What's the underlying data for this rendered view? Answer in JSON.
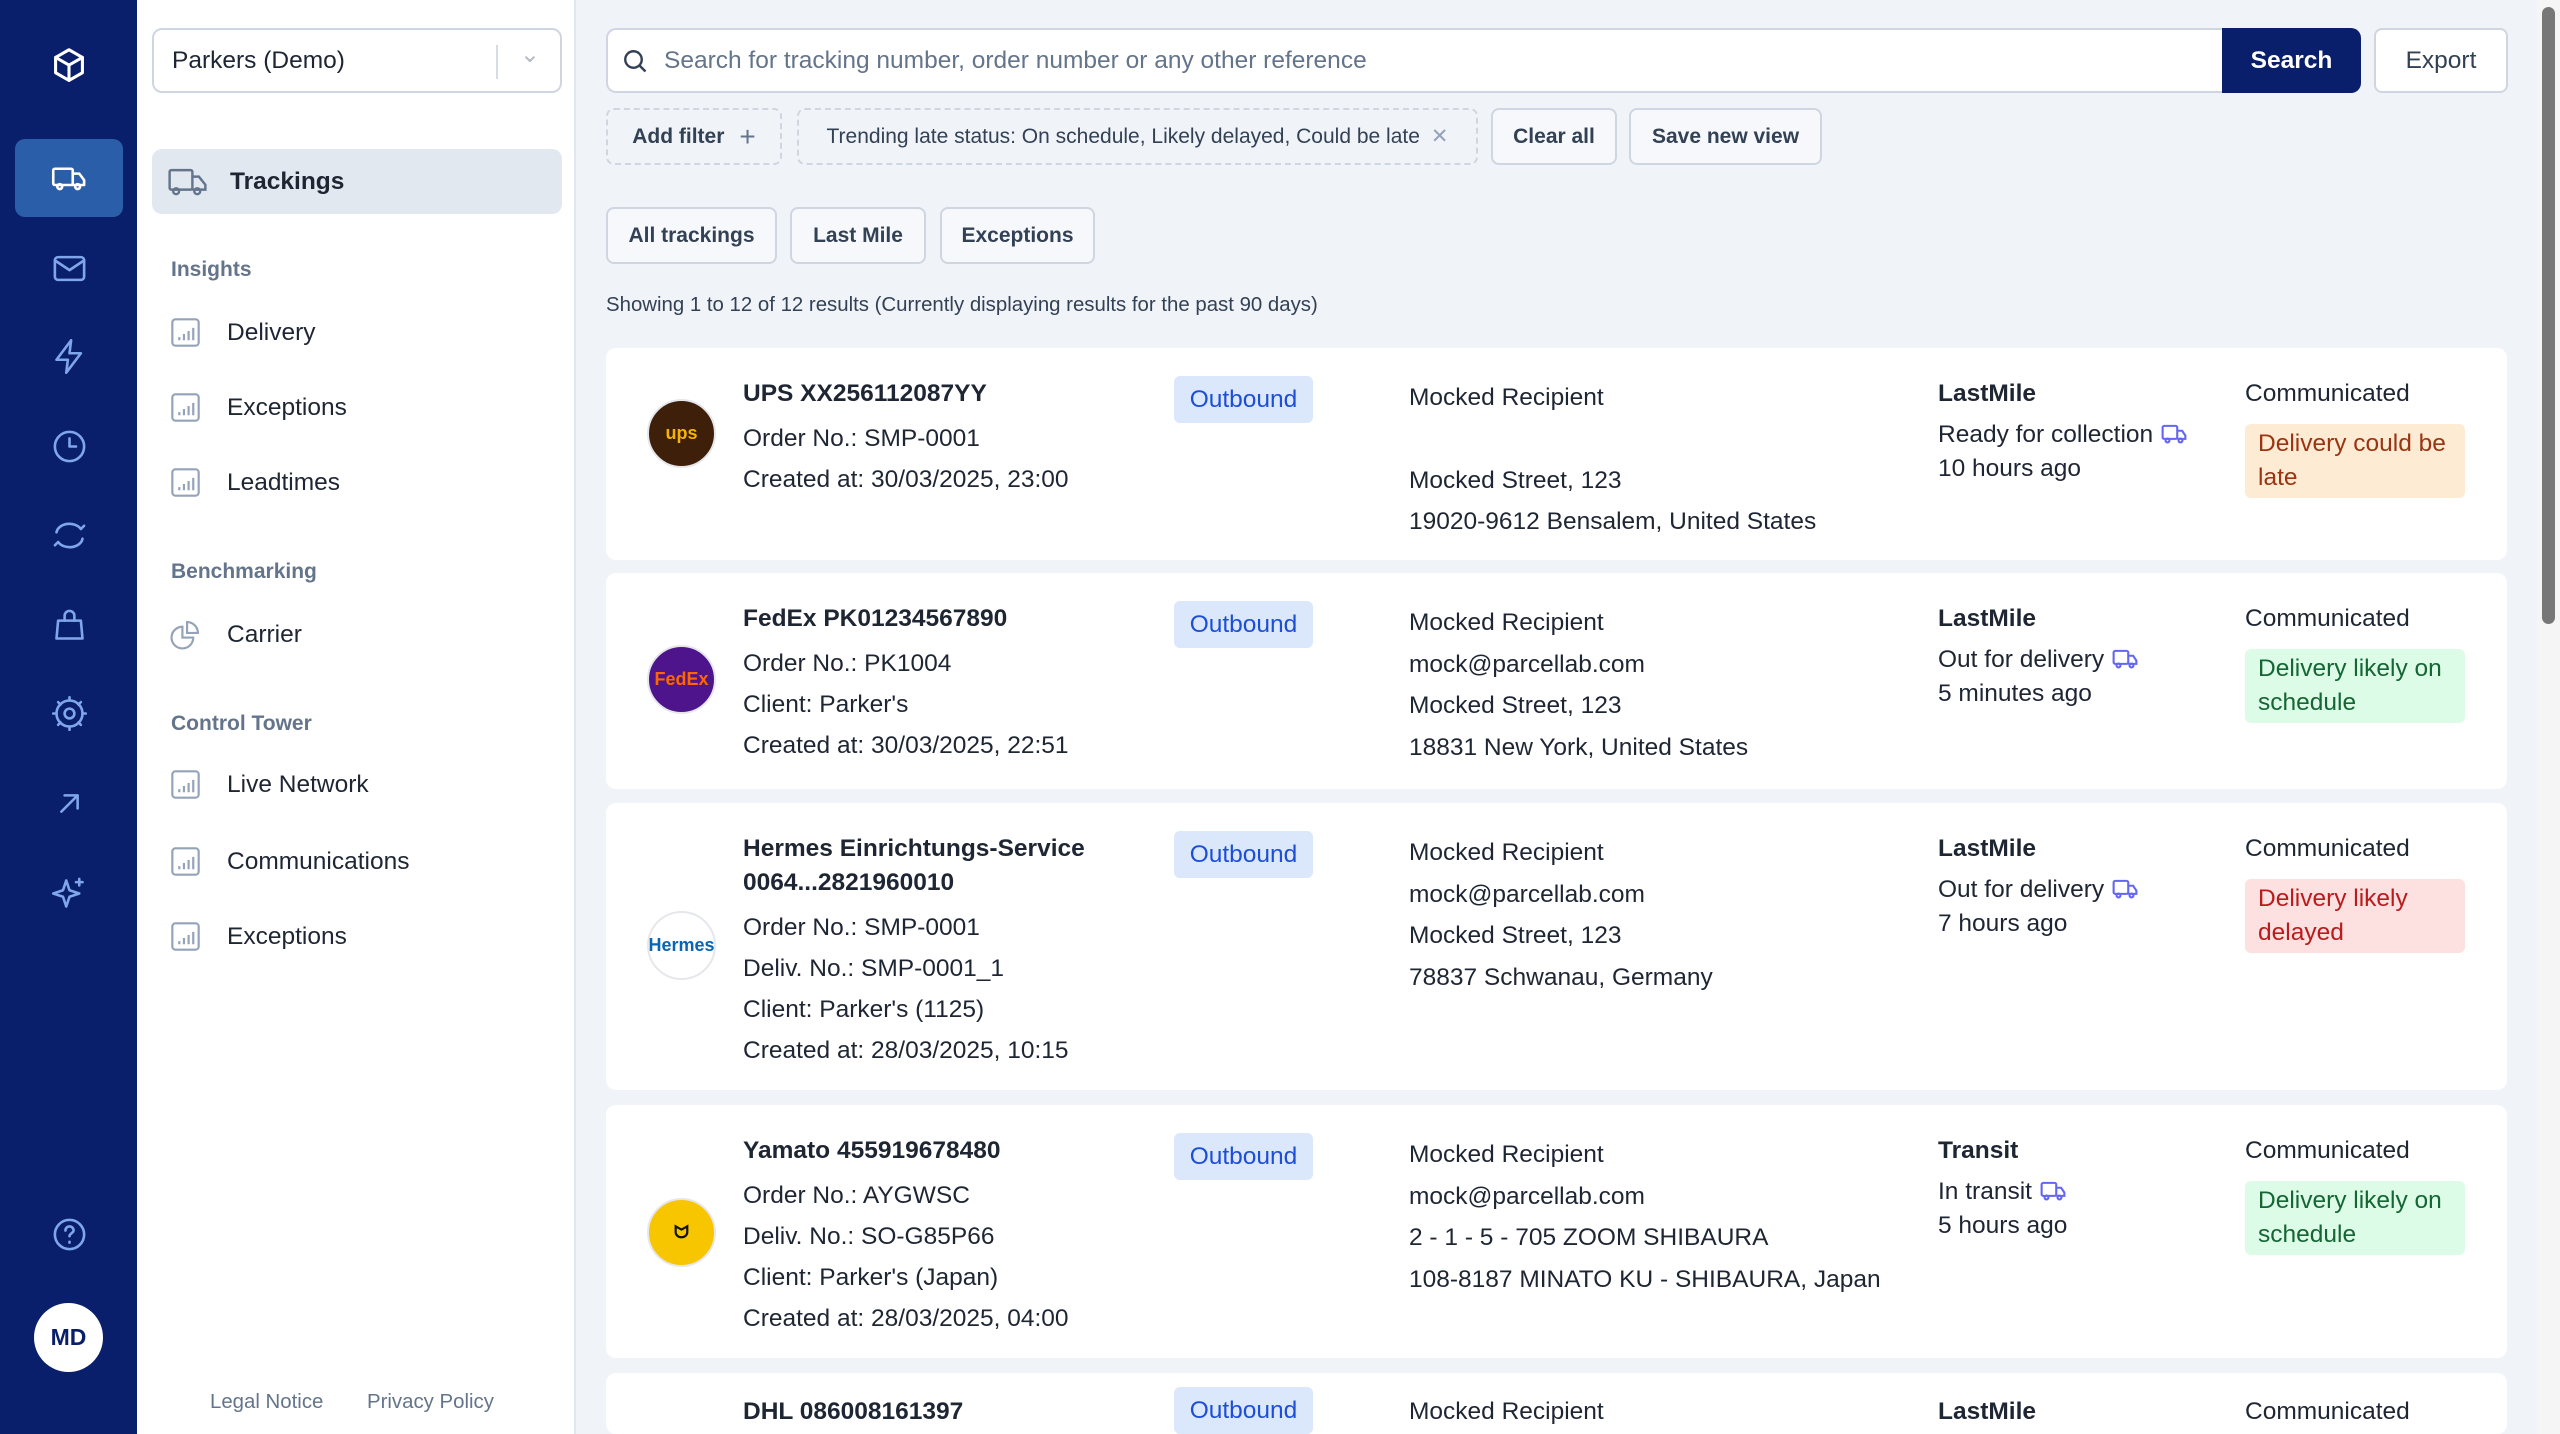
{
  "rail": {
    "items": [
      "logo-icon",
      "truck-icon",
      "mail-icon",
      "bolt-icon",
      "clock-icon",
      "sync-icon",
      "bag-icon",
      "gear-icon",
      "arrow-up-right-icon",
      "sparkles-icon",
      "help-icon"
    ],
    "avatar": "MD",
    "active": "truck-icon",
    "color": "#0a1f6b"
  },
  "sidebar": {
    "account": "Parkers (Demo)",
    "active_item": "Trackings",
    "sections": [
      {
        "heading": "Insights",
        "items": [
          "Delivery",
          "Exceptions",
          "Leadtimes"
        ]
      },
      {
        "heading": "Benchmarking",
        "items": [
          "Carrier"
        ]
      },
      {
        "heading": "Control Tower",
        "items": [
          "Live Network",
          "Communications",
          "Exceptions"
        ]
      }
    ],
    "footer": {
      "legal": "Legal Notice",
      "privacy": "Privacy Policy"
    }
  },
  "toolbar": {
    "search_placeholder": "Search for tracking number, order number or any other reference",
    "search_label": "Search",
    "export_label": "Export",
    "add_filter": "Add filter",
    "filter_chip": "Trending late status: On schedule, Likely delayed, Could be late",
    "clear_all": "Clear all",
    "save_view": "Save new view"
  },
  "tabs": [
    "All trackings",
    "Last Mile",
    "Exceptions"
  ],
  "showing": "Showing 1 to 12 of 12 results (Currently displaying results for the past 90 days)",
  "trackings": [
    {
      "carrier": "ups",
      "title": "UPS  XX256112087YY",
      "lines": [
        "Order No.: SMP-0001",
        "Created at: 30/03/2025, 23:00"
      ],
      "direction": "Outbound",
      "recipient": [
        "Mocked Recipient",
        "",
        "Mocked Street, 123",
        "19020-9612 Bensalem, United States"
      ],
      "stage": "LastMile",
      "status": "Ready for collection",
      "time": "10 hours ago",
      "comm": "Communicated",
      "badge": "Delivery could be late",
      "badge_type": "late"
    },
    {
      "carrier": "fedex",
      "title": "FedEx  PK01234567890",
      "lines": [
        "Order No.: PK1004",
        "Client: Parker's",
        "Created at: 30/03/2025, 22:51"
      ],
      "direction": "Outbound",
      "recipient": [
        "Mocked Recipient",
        "mock@parcellab.com",
        "Mocked Street, 123",
        "18831 New York, United States"
      ],
      "stage": "LastMile",
      "status": "Out for delivery",
      "time": "5 minutes ago",
      "comm": "Communicated",
      "badge": "Delivery likely on schedule",
      "badge_type": "ok"
    },
    {
      "carrier": "hermes",
      "title": "Hermes Einrichtungs-Service 0064...2821960010",
      "lines": [
        "Order No.: SMP-0001",
        "Deliv. No.: SMP-0001_1",
        "Client: Parker's (1125)",
        "Created at: 28/03/2025, 10:15"
      ],
      "direction": "Outbound",
      "recipient": [
        "Mocked Recipient",
        "mock@parcellab.com",
        "Mocked Street, 123",
        "78837 Schwanau, Germany"
      ],
      "stage": "LastMile",
      "status": "Out for delivery",
      "time": "7 hours ago",
      "comm": "Communicated",
      "badge": "Delivery likely delayed",
      "badge_type": "delayed"
    },
    {
      "carrier": "yamato",
      "title": "Yamato  455919678480",
      "lines": [
        "Order No.: AYGWSC",
        "Deliv. No.: SO-G85P66",
        "Client: Parker's (Japan)",
        "Created at: 28/03/2025, 04:00"
      ],
      "direction": "Outbound",
      "recipient": [
        "Mocked Recipient",
        "mock@parcellab.com",
        "2 - 1 - 5 - 705 ZOOM SHIBAURA",
        "108-8187 MINATO KU - SHIBAURA, Japan"
      ],
      "stage": "Transit",
      "status": "In transit",
      "time": "5 hours ago",
      "comm": "Communicated",
      "badge": "Delivery likely on schedule",
      "badge_type": "ok"
    },
    {
      "carrier": "dhl",
      "title": "DHL  086008161397",
      "lines": [],
      "direction": "Outbound",
      "recipient": [
        "Mocked Recipient"
      ],
      "stage": "LastMile",
      "status": "",
      "time": "",
      "comm": "Communicated",
      "badge": "",
      "badge_type": ""
    }
  ],
  "badge_colors": {
    "late": {
      "bg": "#fdebd3",
      "fg": "#9a3412"
    },
    "delayed": {
      "bg": "#fde0e0",
      "fg": "#b91c1c"
    },
    "ok": {
      "bg": "#dcfce7",
      "fg": "#166534"
    }
  }
}
